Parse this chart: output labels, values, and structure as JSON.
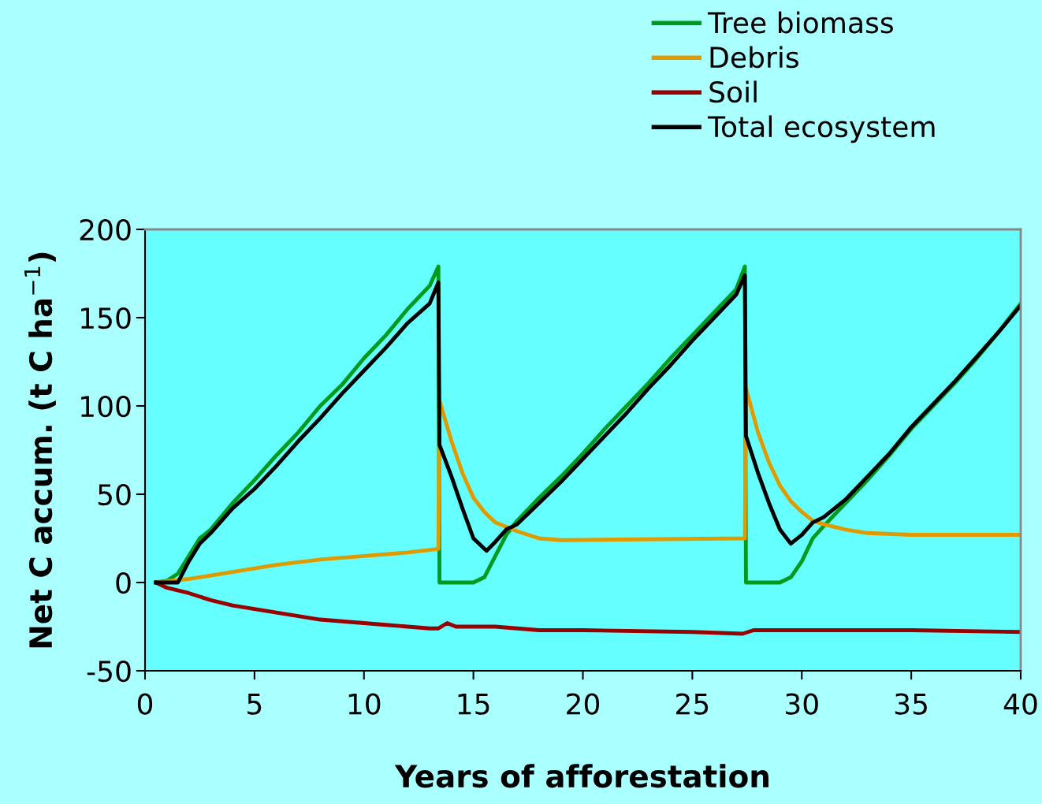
{
  "chart_data": {
    "type": "line",
    "xlabel": "Years of afforestation",
    "ylabel": "Net C accum. (t C ha$^{−1}$)",
    "xlim": [
      0,
      40
    ],
    "xticks": [
      0,
      5,
      10,
      15,
      20,
      25,
      30,
      35,
      40
    ],
    "ylim": [
      -50,
      200
    ],
    "yticks": [
      -50,
      0,
      50,
      100,
      150,
      200
    ],
    "grid": false,
    "legend": "top right",
    "marker": "none",
    "line_style": "solid",
    "series": [
      {
        "name": "Tree biomass",
        "color": "#009a1e",
        "x": [
          0.5,
          1,
          1.5,
          2,
          2.5,
          3,
          4,
          5,
          6,
          7,
          8,
          9,
          10,
          11,
          12,
          13,
          13.4,
          13.45,
          15,
          15.5,
          16,
          16.5,
          17,
          18,
          19,
          20,
          21,
          22,
          23,
          24,
          25,
          26,
          27,
          27.4,
          27.45,
          29,
          29.5,
          30,
          30.5,
          31,
          32,
          33,
          34,
          35,
          36,
          37,
          38,
          39,
          40
        ],
        "values": [
          0,
          1,
          5,
          15,
          25,
          30,
          45,
          58,
          72,
          85,
          100,
          112,
          127,
          140,
          155,
          168,
          179,
          0,
          0,
          3,
          15,
          27,
          35,
          48,
          60,
          73,
          87,
          100,
          113,
          127,
          140,
          153,
          166,
          179,
          0,
          0,
          3,
          12,
          25,
          32,
          45,
          58,
          72,
          87,
          100,
          113,
          127,
          142,
          158
        ]
      },
      {
        "name": "Debris",
        "color": "#e09a00",
        "x": [
          0.5,
          2,
          4,
          6,
          8,
          10,
          12,
          13.4,
          13.45,
          14,
          14.5,
          15,
          15.5,
          16,
          17,
          18,
          19,
          27.4,
          27.45,
          28,
          28.5,
          29,
          29.5,
          30,
          30.5,
          31,
          32,
          33,
          35,
          40
        ],
        "values": [
          0,
          2,
          6,
          10,
          13,
          15,
          17,
          19,
          103,
          80,
          62,
          48,
          40,
          34,
          29,
          25,
          24,
          25,
          110,
          85,
          68,
          55,
          46,
          40,
          35,
          33,
          30,
          28,
          27,
          27
        ]
      },
      {
        "name": "Soil",
        "color": "#990000",
        "x": [
          0.5,
          1,
          2,
          3,
          4,
          5,
          6,
          7,
          8,
          9,
          10,
          11,
          12,
          13,
          13.4,
          13.8,
          14.2,
          16,
          18,
          20,
          25,
          27.3,
          27.8,
          30,
          35,
          40
        ],
        "values": [
          0,
          -3,
          -6,
          -10,
          -13,
          -15,
          -17,
          -19,
          -21,
          -22,
          -23,
          -24,
          -25,
          -26,
          -26,
          -23,
          -25,
          -25,
          -27,
          -27,
          -28,
          -29,
          -27,
          -27,
          -27,
          -28
        ]
      },
      {
        "name": "Total ecosystem",
        "color": "#000000",
        "x": [
          0.5,
          1,
          1.5,
          2,
          2.5,
          3,
          4,
          5,
          6,
          7,
          8,
          9,
          10,
          11,
          12,
          13,
          13.4,
          13.45,
          14,
          14.5,
          15,
          15.6,
          16,
          16.5,
          17,
          18,
          19,
          20,
          21,
          22,
          23,
          24,
          25,
          26,
          27,
          27.4,
          27.45,
          28,
          28.5,
          29,
          29.5,
          30,
          30.5,
          31,
          32,
          33,
          34,
          35,
          36,
          37,
          38,
          39,
          40
        ],
        "values": [
          0,
          0,
          0,
          12,
          22,
          28,
          42,
          53,
          66,
          80,
          93,
          107,
          120,
          133,
          147,
          158,
          170,
          78,
          60,
          42,
          25,
          18,
          23,
          30,
          33,
          45,
          57,
          70,
          83,
          96,
          110,
          123,
          137,
          150,
          163,
          174,
          83,
          62,
          45,
          30,
          22,
          27,
          34,
          37,
          47,
          60,
          73,
          88,
          101,
          114,
          128,
          142,
          157
        ]
      }
    ]
  }
}
